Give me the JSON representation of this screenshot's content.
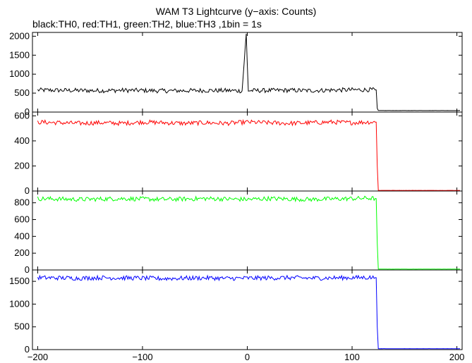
{
  "header": {
    "title": "WAM T3 Lightcurve (y−axis: Counts)",
    "subtitle": "black:TH0, red:TH1, green:TH2, blue:TH3 ,1bin = 1s"
  },
  "chart_data": {
    "type": "line",
    "title": "WAM T3 Lightcurve (y−axis: Counts)",
    "subtitle": "black:TH0, red:TH1, green:TH2, blue:TH3 ,1bin = 1s",
    "xlim": [
      -205,
      205
    ],
    "x_ticks": [
      -200,
      -100,
      0,
      100,
      200
    ],
    "x_tick_labels": [
      "−200",
      "−100",
      "0",
      "100",
      "200"
    ],
    "bin_seconds": 1,
    "panels": [
      {
        "name": "TH0",
        "color": "#000000",
        "ylim": [
          0,
          2100
        ],
        "y_ticks": [
          0,
          500,
          1000,
          1500,
          2000
        ],
        "x": [
          -200,
          -180,
          -160,
          -140,
          -120,
          -100,
          -80,
          -60,
          -40,
          -20,
          -5,
          -1,
          0,
          1,
          2,
          20,
          40,
          60,
          80,
          100,
          115,
          123,
          124,
          125,
          130,
          160,
          203
        ],
        "y": [
          580,
          575,
          570,
          565,
          575,
          570,
          560,
          565,
          570,
          568,
          560,
          2050,
          1250,
          570,
          565,
          570,
          575,
          565,
          580,
          585,
          590,
          585,
          100,
          40,
          40,
          40,
          40
        ]
      },
      {
        "name": "TH1",
        "color": "#ff0000",
        "ylim": [
          0,
          630
        ],
        "y_ticks": [
          0,
          200,
          400,
          600
        ],
        "x": [
          -200,
          -180,
          -160,
          -140,
          -120,
          -100,
          -80,
          -60,
          -40,
          -20,
          0,
          20,
          40,
          60,
          80,
          100,
          115,
          123,
          124,
          125,
          130,
          160,
          203
        ],
        "y": [
          550,
          545,
          540,
          545,
          540,
          550,
          545,
          540,
          545,
          540,
          550,
          545,
          540,
          545,
          550,
          545,
          550,
          550,
          200,
          5,
          5,
          5,
          5
        ]
      },
      {
        "name": "TH2",
        "color": "#00ff00",
        "ylim": [
          0,
          940
        ],
        "y_ticks": [
          0,
          200,
          400,
          600,
          800
        ],
        "x": [
          -200,
          -180,
          -160,
          -140,
          -120,
          -100,
          -80,
          -60,
          -40,
          -20,
          0,
          20,
          40,
          60,
          80,
          100,
          115,
          123,
          124,
          125,
          130,
          160,
          203
        ],
        "y": [
          850,
          845,
          840,
          845,
          850,
          845,
          840,
          845,
          850,
          845,
          840,
          850,
          845,
          840,
          845,
          850,
          855,
          850,
          320,
          10,
          10,
          10,
          10
        ]
      },
      {
        "name": "TH3",
        "color": "#0000ff",
        "ylim": [
          0,
          1750
        ],
        "y_ticks": [
          0,
          500,
          1000,
          1500
        ],
        "x": [
          -200,
          -180,
          -160,
          -140,
          -120,
          -100,
          -80,
          -60,
          -40,
          -20,
          0,
          20,
          40,
          60,
          80,
          100,
          115,
          123,
          124,
          125,
          130,
          160,
          203
        ],
        "y": [
          1580,
          1575,
          1570,
          1580,
          1575,
          1570,
          1560,
          1570,
          1575,
          1565,
          1570,
          1575,
          1580,
          1570,
          1575,
          1580,
          1585,
          1580,
          500,
          20,
          20,
          20,
          20
        ]
      }
    ]
  }
}
